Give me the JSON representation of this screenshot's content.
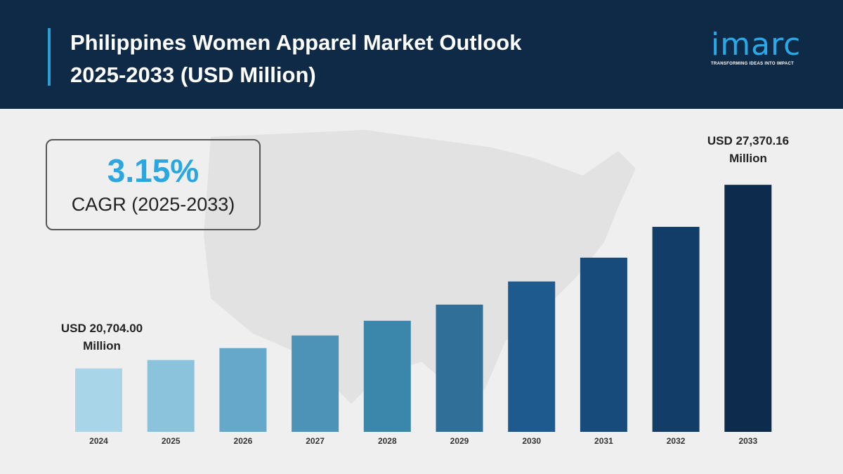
{
  "header": {
    "title_line1": "Philippines Women Apparel Market Outlook",
    "title_line2": "2025-2033 (USD Million)"
  },
  "logo": {
    "word": "imarc",
    "tagline": "TRANSFORMING IDEAS INTO IMPACT"
  },
  "cagr": {
    "value": "3.15%",
    "label": "CAGR (2025-2033)"
  },
  "chart_data": {
    "type": "bar",
    "title": "Philippines Women Apparel Market Outlook 2025-2033 (USD Million)",
    "categories": [
      "2024",
      "2025",
      "2026",
      "2027",
      "2028",
      "2029",
      "2030",
      "2031",
      "2032",
      "2033"
    ],
    "values": [
      20704.0,
      21009,
      21442,
      21900,
      22434,
      23020,
      23860,
      24725,
      25844,
      27370.16
    ],
    "ylim": [
      18400,
      27400
    ],
    "axis_visible": false,
    "grid": false,
    "annotations": [
      {
        "category": "2024",
        "line1": "USD 20,704.00",
        "line2": "Million"
      },
      {
        "category": "2033",
        "line1": "USD 27,370.16",
        "line2": "Million"
      }
    ],
    "colors": [
      "#a8d5e8",
      "#8cc3dc",
      "#66a8c9",
      "#4d93b7",
      "#3a87ab",
      "#2f6f98",
      "#1e5a8e",
      "#174b7c",
      "#123d68",
      "#0d2b4c"
    ]
  }
}
